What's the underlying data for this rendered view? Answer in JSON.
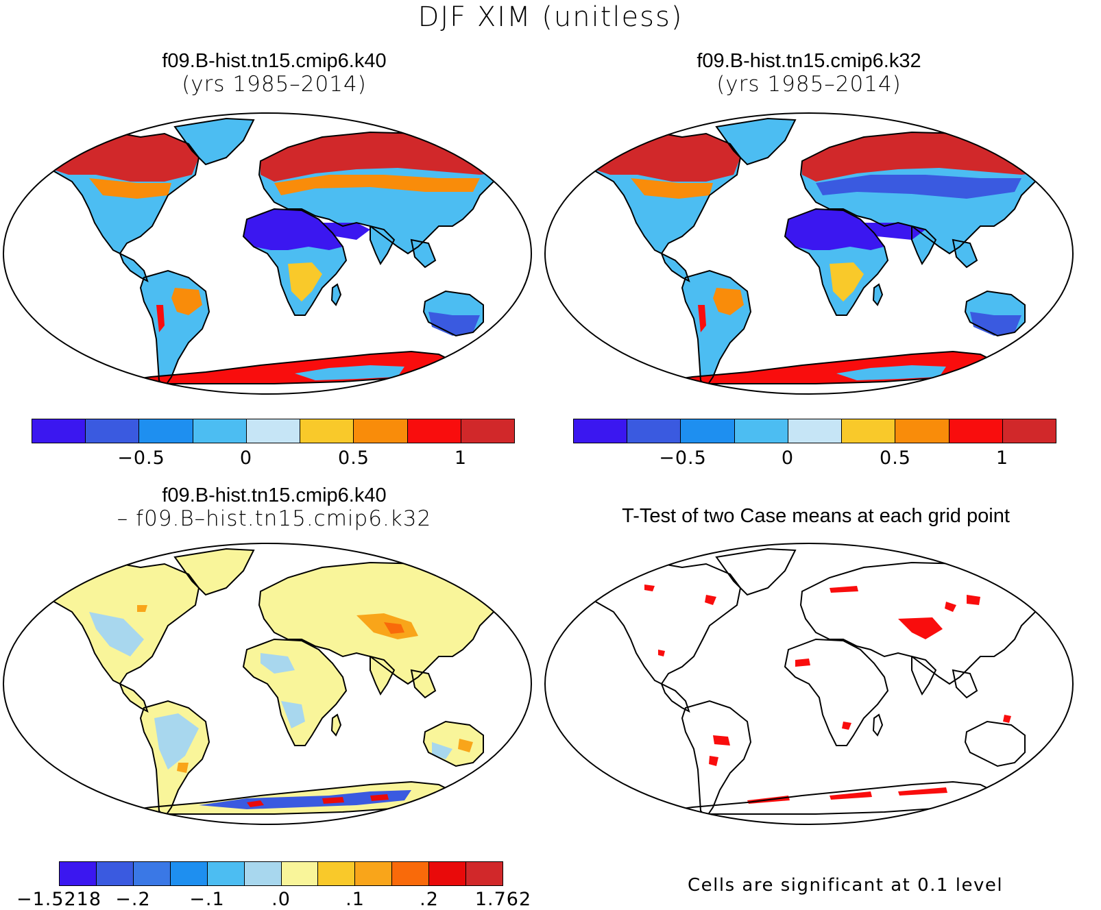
{
  "title": "DJF XIM (unitless)",
  "panels": [
    {
      "id": "k40",
      "title": "f09.B-hist.tn15.cmip6.k40",
      "subtitle": "(yrs 1985–2014)"
    },
    {
      "id": "k32",
      "title": "f09.B-hist.tn15.cmip6.k32",
      "subtitle": "(yrs 1985–2014)"
    },
    {
      "id": "diff",
      "title": "f09.B-hist.tn15.cmip6.k40",
      "subtitle": "– f09.B–hist.tn15.cmip6.k32"
    },
    {
      "id": "ttest",
      "title": "T-Test of two Case means at each grid point",
      "subtitle": ""
    }
  ],
  "colorbars": {
    "case": {
      "colors": [
        "#3b17f0",
        "#3a5ae0",
        "#1e8ff0",
        "#4cbdf2",
        "#c6e5f6",
        "#f9c92a",
        "#f98c0a",
        "#f90d0d",
        "#d1282a"
      ],
      "ticks": [
        "−0.5",
        "0",
        "0.5",
        "1"
      ]
    },
    "diff": {
      "colors": [
        "#3b17f0",
        "#3a5ae0",
        "#3a78e6",
        "#1e8ff0",
        "#4cbdf2",
        "#a8d7ee",
        "#f9f59a",
        "#f9c92a",
        "#f9a51a",
        "#f96a0a",
        "#e90a0a",
        "#d1282a"
      ],
      "ticks": [
        "−1.5218",
        "−.2",
        "−.1",
        ".0",
        ".1",
        ".2",
        "1.762"
      ]
    }
  },
  "footnote": "Cells are significant at 0.1 level",
  "colors": {
    "africa": "#3b17f0",
    "arctic": "#d1282a",
    "antarctic": "#f90d0d",
    "ttest_sig": "#f90d0d",
    "diff_base": "#f9f59a",
    "diff_neg": "#a8d7ee",
    "diff_pos": "#f9a51a"
  }
}
